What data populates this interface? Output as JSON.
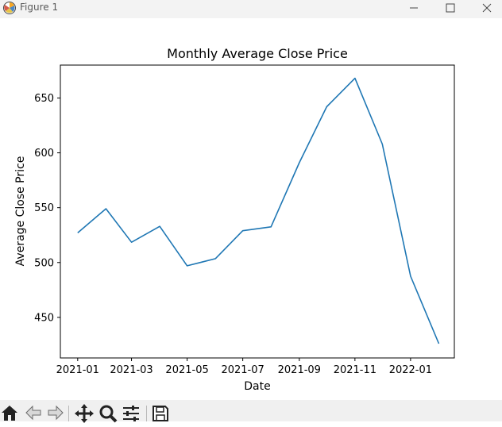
{
  "window": {
    "title": "Figure 1",
    "buttons": [
      "minimize-icon",
      "maximize-icon",
      "close-icon"
    ]
  },
  "toolbar": {
    "tools": [
      "home-icon",
      "back-arrow-icon",
      "forward-arrow-icon",
      "pan-icon",
      "zoom-icon",
      "configure-subplots-icon",
      "save-icon"
    ]
  },
  "chart_data": {
    "type": "line",
    "title": "Monthly Average Close Price",
    "xlabel": "Date",
    "ylabel": "Average Close Price",
    "x": [
      "2021-01",
      "2021-02",
      "2021-03",
      "2021-04",
      "2021-05",
      "2021-06",
      "2021-07",
      "2021-08",
      "2021-09",
      "2021-10",
      "2021-11",
      "2021-12",
      "2022-01",
      "2022-02"
    ],
    "series": [
      {
        "values": [
          527,
          549,
          518.5,
          533,
          497,
          503.5,
          529,
          532.5,
          591,
          642,
          668,
          608,
          487.5,
          426
        ],
        "color": "#1f77b4"
      }
    ],
    "x_ticks": [
      "2021-01",
      "2021-03",
      "2021-05",
      "2021-07",
      "2021-09",
      "2021-11",
      "2022-01"
    ],
    "y_ticks": [
      450,
      500,
      550,
      600,
      650
    ],
    "xlim": [
      "2020-12-13",
      "2022-02-18"
    ],
    "ylim": [
      413,
      680
    ],
    "grid": false
  }
}
